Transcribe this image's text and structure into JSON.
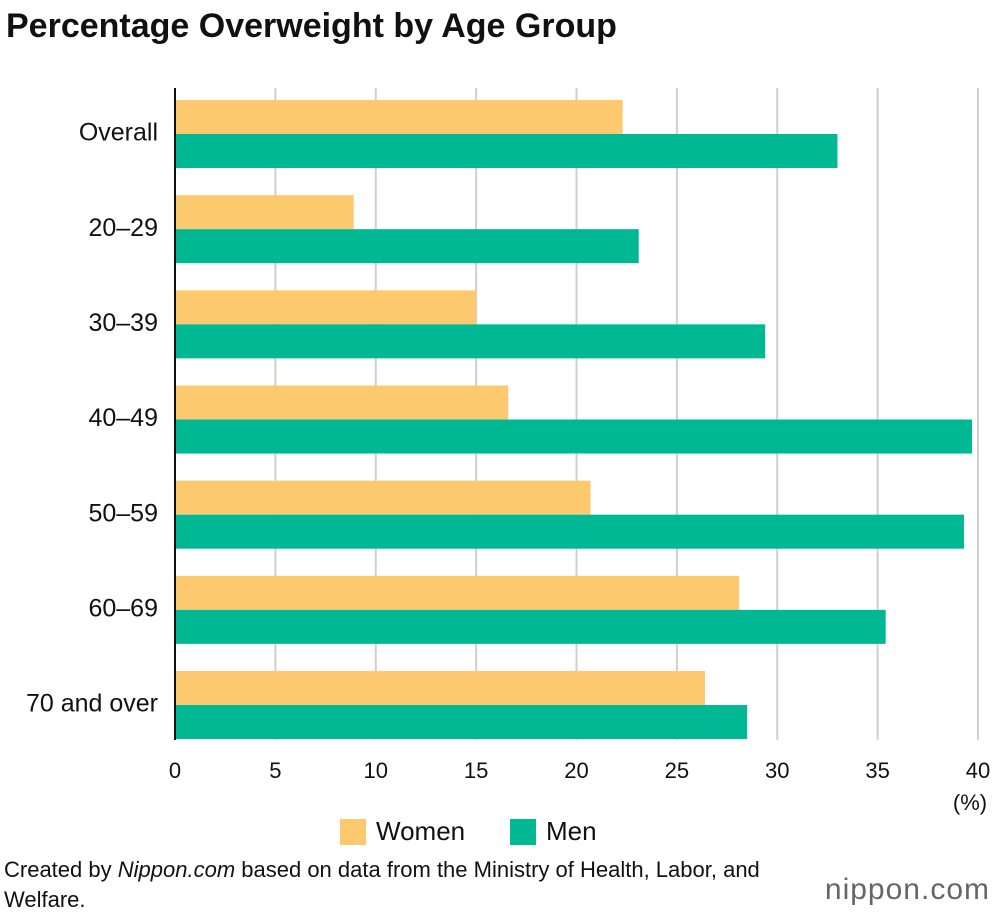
{
  "chart_data": {
    "type": "hbar",
    "title": "Percentage Overweight by Age Group",
    "categories": [
      "Overall",
      "20–29",
      "30–39",
      "40–49",
      "50–59",
      "60–69",
      "70 and over"
    ],
    "series": [
      {
        "name": "Women",
        "color": "#fcc96e",
        "values": [
          22.3,
          8.9,
          15.0,
          16.6,
          20.7,
          28.1,
          26.4
        ]
      },
      {
        "name": "Men",
        "color": "#00b894",
        "values": [
          33.0,
          23.1,
          29.4,
          39.7,
          39.3,
          35.4,
          28.5
        ]
      }
    ],
    "xlim": [
      0,
      40
    ],
    "xticks": [
      0,
      5,
      10,
      15,
      20,
      25,
      30,
      35,
      40
    ],
    "x_unit": "(%)",
    "grid": true,
    "legend": "bottom",
    "source": {
      "prefix": "Created by",
      "italic": "Nippon.com",
      "rest": "based on data from the Ministry of Health, Labor, and Welfare."
    },
    "logo": "nippon.com"
  }
}
